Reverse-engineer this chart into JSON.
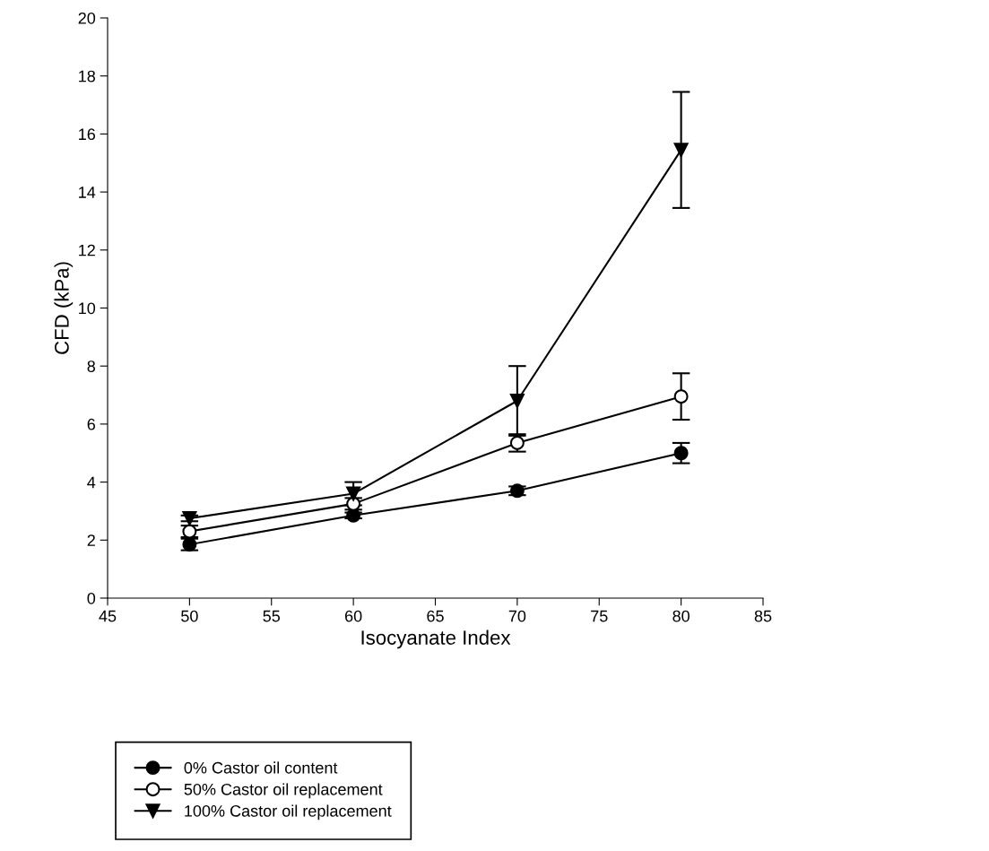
{
  "chart_data": {
    "type": "line",
    "xlabel": "Isocyanate Index",
    "ylabel": "CFD (kPa)",
    "x": [
      50,
      60,
      70,
      80
    ],
    "xlim": [
      45,
      85
    ],
    "xticks": [
      45,
      50,
      55,
      60,
      65,
      70,
      75,
      80,
      85
    ],
    "ylim": [
      0,
      20
    ],
    "yticks": [
      0,
      2,
      4,
      6,
      8,
      10,
      12,
      14,
      16,
      18,
      20
    ],
    "grid": false,
    "legend": "bottom left",
    "line_style": "solid",
    "series": [
      {
        "name": "0% Castor oil content",
        "color": "#000000",
        "marker": "circle",
        "values": [
          1.85,
          2.85,
          3.7,
          5.0
        ],
        "errors": [
          0.2,
          0.1,
          0.15,
          0.35
        ]
      },
      {
        "name": "50% Castor oil replacement",
        "color": "#000000",
        "marker": "circle_open",
        "values": [
          2.3,
          3.25,
          5.35,
          6.95
        ],
        "errors": [
          0.2,
          0.2,
          0.3,
          0.8
        ]
      },
      {
        "name": "100% Castor oil replacement",
        "color": "#000000",
        "marker": "triangle_down",
        "values": [
          2.75,
          3.6,
          6.8,
          15.45
        ],
        "errors": [
          0.1,
          0.4,
          1.2,
          2.0
        ]
      }
    ]
  }
}
